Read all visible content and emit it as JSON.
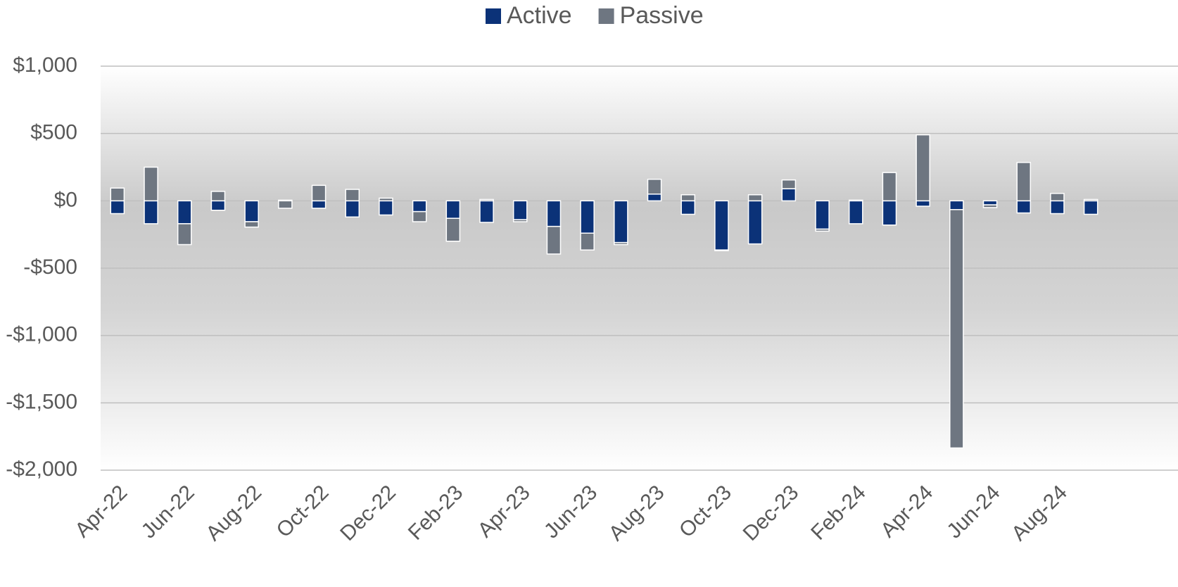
{
  "chart_data": {
    "type": "bar",
    "stacked": true,
    "categories": [
      "Apr-22",
      null,
      "Jun-22",
      null,
      "Aug-22",
      null,
      "Oct-22",
      null,
      "Dec-22",
      null,
      "Feb-23",
      null,
      "Apr-23",
      null,
      "Jun-23",
      null,
      "Aug-23",
      null,
      "Oct-23",
      null,
      "Dec-23",
      null,
      "Feb-24",
      null,
      "Apr-24",
      null,
      "Jun-24",
      null,
      "Aug-24",
      null
    ],
    "series": [
      {
        "name": "Active",
        "color": "#0b3278",
        "values": [
          -95,
          -170,
          -170,
          -70,
          -155,
          5,
          -55,
          -120,
          -105,
          -80,
          -130,
          -160,
          -140,
          -190,
          -240,
          -310,
          50,
          -100,
          -365,
          -320,
          90,
          -210,
          -170,
          -180,
          -40,
          -65,
          -30,
          -90,
          -95,
          -100
        ]
      },
      {
        "name": "Passive",
        "color": "#6e7681",
        "values": [
          95,
          250,
          -155,
          70,
          -40,
          -55,
          115,
          85,
          20,
          -75,
          -170,
          10,
          -15,
          -205,
          -125,
          -15,
          110,
          45,
          -5,
          45,
          65,
          -15,
          5,
          210,
          490,
          -1770,
          -20,
          285,
          55,
          10
        ]
      }
    ],
    "ylim": [
      -2000,
      1000
    ],
    "yticks": [
      {
        "value": 1000,
        "label": "$1,000"
      },
      {
        "value": 500,
        "label": "$500"
      },
      {
        "value": 0,
        "label": "$0"
      },
      {
        "value": -500,
        "label": "-$500"
      },
      {
        "value": -1000,
        "label": "-$1,000"
      },
      {
        "value": -1500,
        "label": "-$1,500"
      },
      {
        "value": -2000,
        "label": "-$2,000"
      }
    ],
    "grid": true,
    "legend": "top"
  }
}
